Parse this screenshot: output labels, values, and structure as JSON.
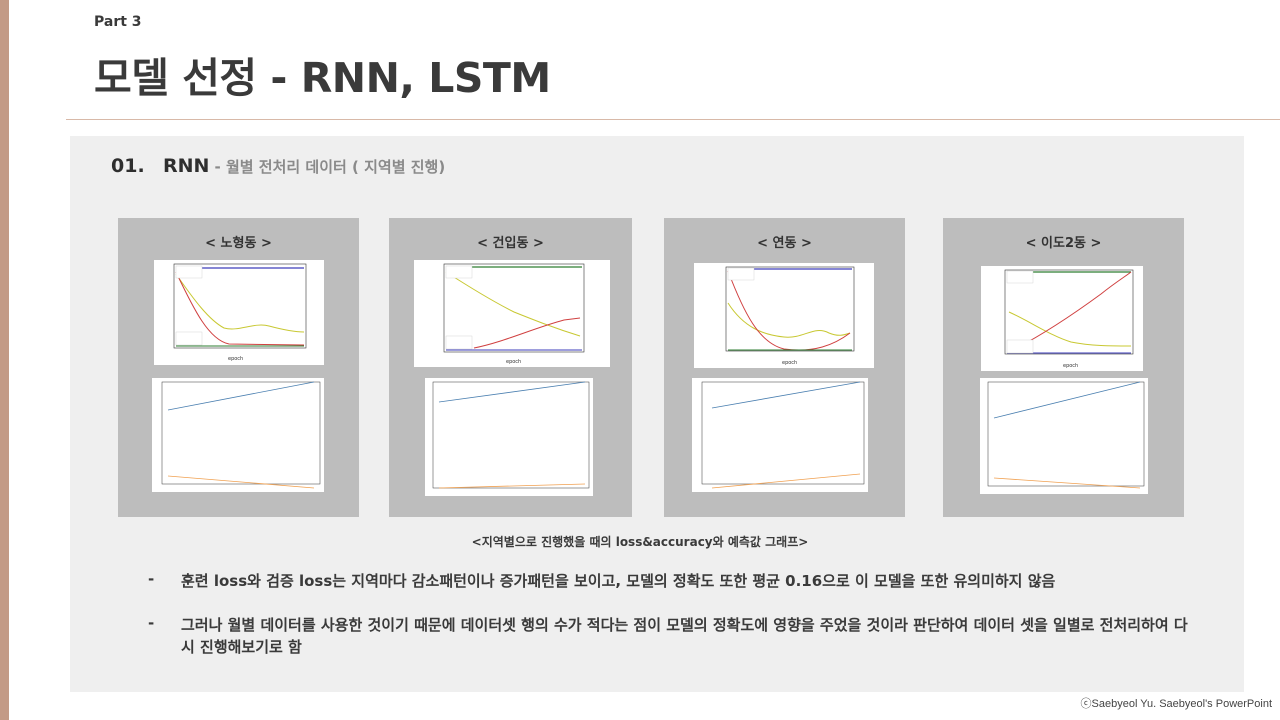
{
  "slide": {
    "part_label": "Part 3",
    "title": "모델 선정 - RNN, LSTM"
  },
  "section": {
    "number": "01.",
    "model": "RNN",
    "description": "- 월별 전처리 데이터 ( 지역별 진행)"
  },
  "cards": [
    {
      "title": "< 노형동 >"
    },
    {
      "title": "< 건입동 >"
    },
    {
      "title": "< 연동 >"
    },
    {
      "title": "< 이도2동 >"
    }
  ],
  "caption": "<지역별으로 진행했을 때의 loss&accuracy와 예측값 그래프>",
  "bullets": [
    {
      "dash": "-",
      "text": "훈련 loss와 검증 loss는 지역마다 감소패턴이나 증가패턴을 보이고, 모델의 정확도 또한 평균 0.16으로 이 모델을 또한 유의미하지 않음"
    },
    {
      "dash": "-",
      "text": "그러나 월별 데이터를 사용한 것이기 때문에 데이터셋 행의 수가 적다는 점이 모델의 정확도에 영향을 주었을 것이라 판단하여 데이터 셋을 일별로 전처리하여 다시 진행해보기로 함"
    }
  ],
  "copyright": "ⓒSaebyeol Yu. Saebyeol's PowerPoint",
  "colors": {
    "side_bar": "#c39a86",
    "divider": "#d8b9a8",
    "panel": "#efefef",
    "card": "#bdbdbd",
    "train_loss": "#3d3dbb",
    "val_loss": "#c8c832",
    "train_acc": "#2e7d32",
    "val_acc": "#d04040",
    "actual": "#4a7fb0",
    "predicted": "#f0a050"
  }
}
